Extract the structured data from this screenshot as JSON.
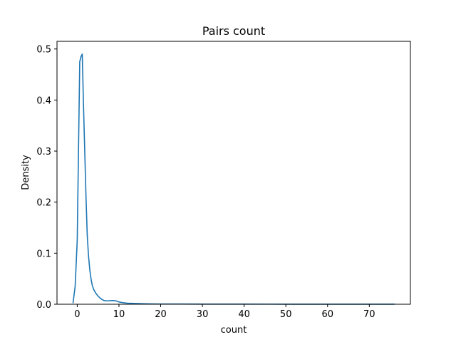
{
  "chart_data": {
    "type": "line",
    "title": "Pairs count",
    "xlabel": "count",
    "ylabel": "Density",
    "xlim": [
      -4.85,
      79.85
    ],
    "ylim": [
      0,
      0.515
    ],
    "x_ticks": [
      0,
      10,
      20,
      30,
      40,
      50,
      60,
      70
    ],
    "x_tick_labels": [
      "0",
      "10",
      "20",
      "30",
      "40",
      "50",
      "60",
      "70"
    ],
    "y_ticks": [
      0.0,
      0.1,
      0.2,
      0.3,
      0.4,
      0.5
    ],
    "y_tick_labels": [
      "0.0",
      "0.1",
      "0.2",
      "0.3",
      "0.4",
      "0.5"
    ],
    "grid": false,
    "series_color": "#1f77b4",
    "series": [
      {
        "x": [
          -1,
          -0.5,
          0,
          0.3,
          0.6,
          0.9,
          1.2,
          1.5,
          1.8,
          2.1,
          2.4,
          2.7,
          3.0,
          3.3,
          3.6,
          4.0,
          4.5,
          5.0,
          5.5,
          6.0,
          6.5,
          7.0,
          7.5,
          8.0,
          8.5,
          9.0,
          9.5,
          10.0,
          11.0,
          12.0,
          14.0,
          16.0,
          18.0,
          20.0,
          25.0,
          30.0,
          40.0,
          50.0,
          60.0,
          70.0,
          76.0
        ],
        "y": [
          0.003,
          0.035,
          0.125,
          0.3,
          0.475,
          0.485,
          0.49,
          0.39,
          0.3,
          0.21,
          0.135,
          0.095,
          0.068,
          0.05,
          0.037,
          0.028,
          0.021,
          0.016,
          0.012,
          0.009,
          0.007,
          0.0065,
          0.0068,
          0.007,
          0.0072,
          0.007,
          0.006,
          0.0045,
          0.003,
          0.002,
          0.0015,
          0.001,
          0.0007,
          0.0005,
          0.0004,
          0.0003,
          0.0002,
          0.00015,
          0.0001,
          0.0001,
          0.0001
        ]
      }
    ]
  }
}
